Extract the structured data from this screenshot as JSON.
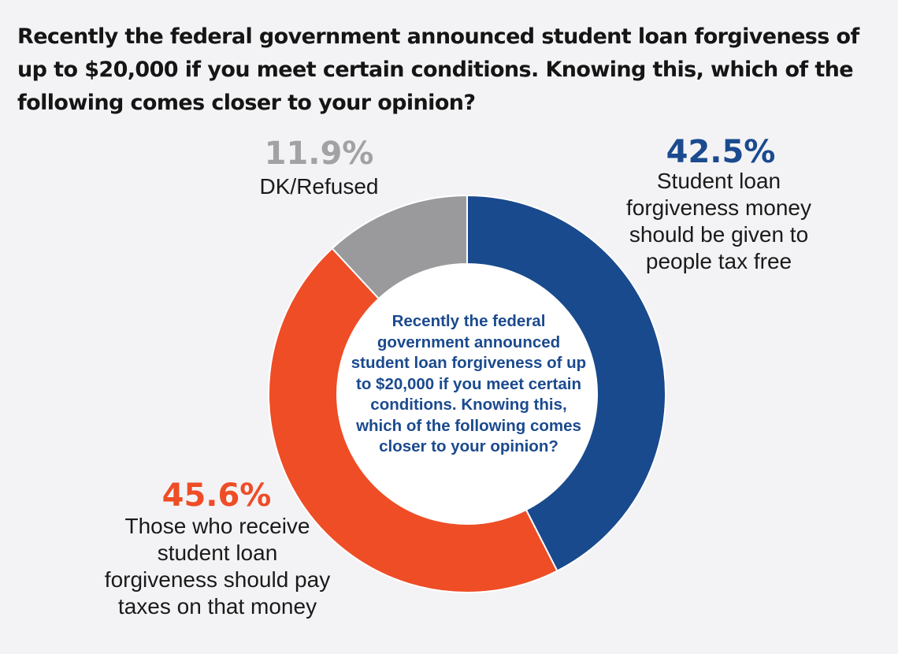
{
  "chart_data": {
    "type": "pie",
    "title": "Recently the federal government announced student loan forgiveness of up to $20,000 if you meet certain conditions. Knowing this, which of the following comes closer to your opinion?",
    "center_text": "Recently the federal government announced student loan forgiveness of up to $20,000 if you meet certain conditions. Knowing this, which of the following comes closer to your opinion?",
    "donut": true,
    "slices": [
      {
        "label": "Student loan forgiveness money should be given to people tax free",
        "value": 42.5,
        "value_label": "42.5%",
        "color": "#194a8d"
      },
      {
        "label": "Those who receive student loan forgiveness should pay taxes on that money",
        "value": 45.6,
        "value_label": "45.6%",
        "color": "#ee4d26"
      },
      {
        "label": "DK/Refused",
        "value": 11.9,
        "value_label": "11.9%",
        "color": "#9a9a9c"
      }
    ]
  }
}
